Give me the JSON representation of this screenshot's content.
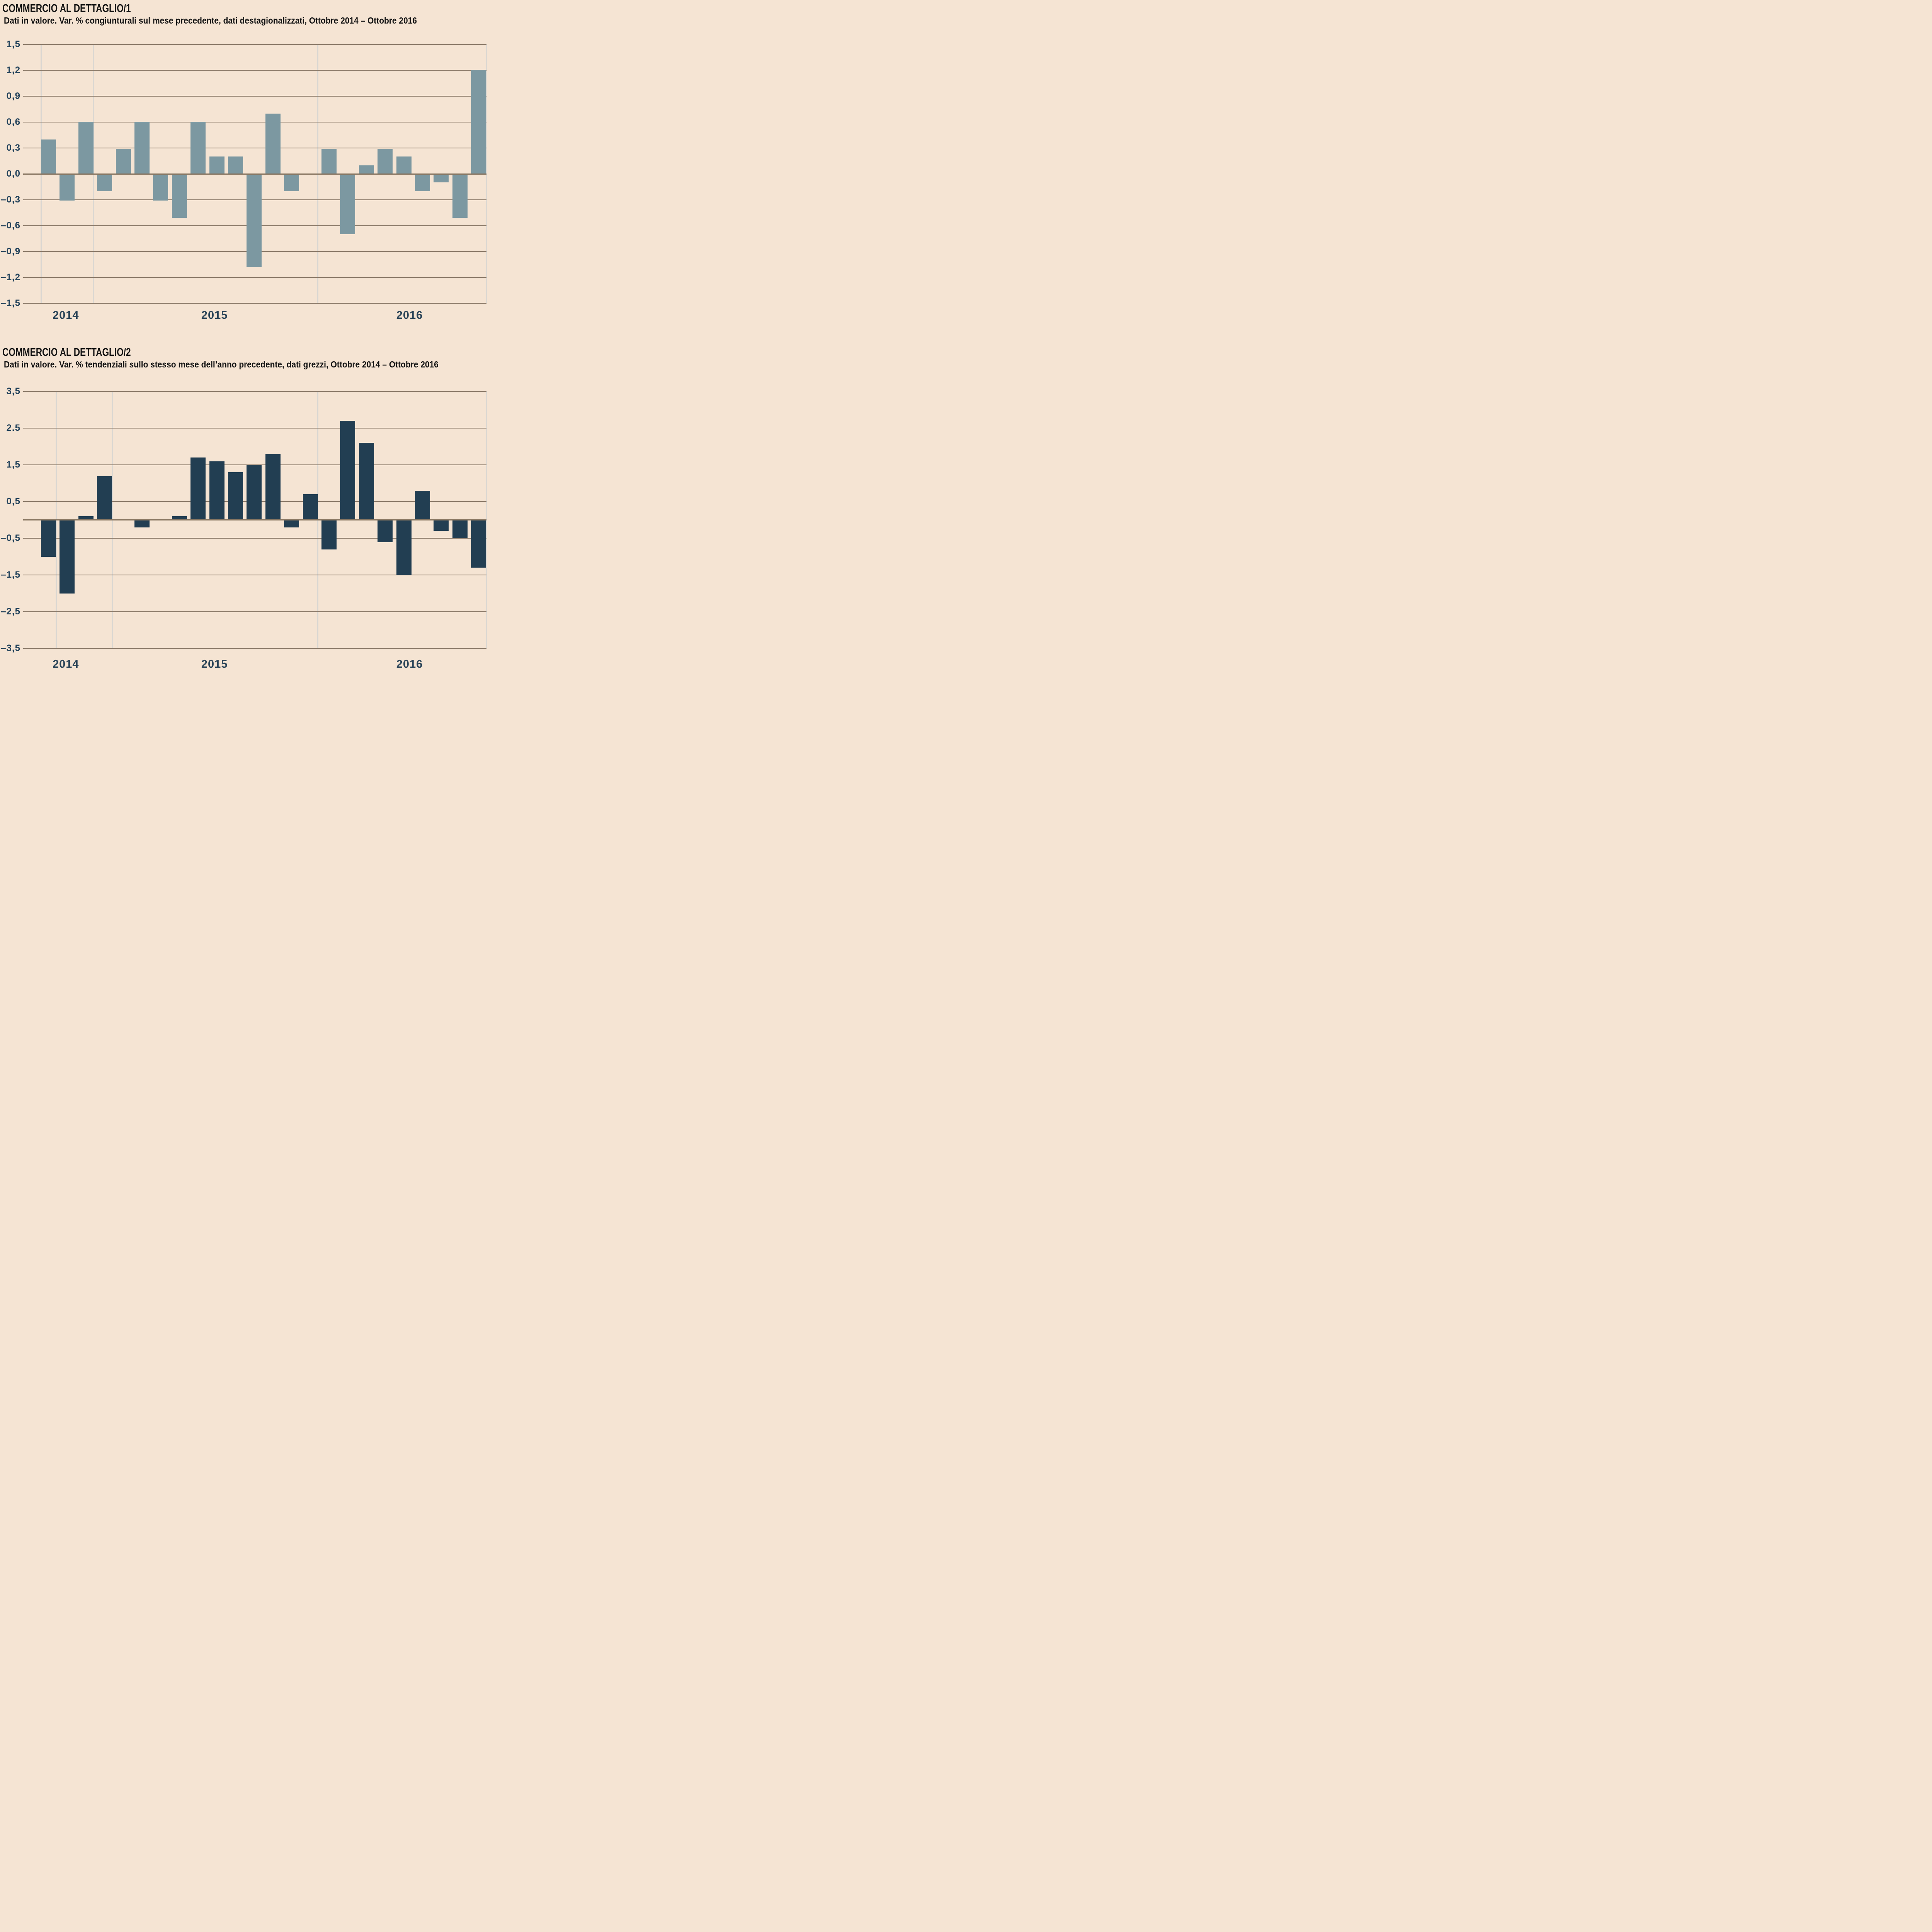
{
  "page": {
    "background": "#f5e4d3"
  },
  "colors": {
    "background": "#f5e4d3",
    "bar_chart1": "#7c98a1",
    "bar_chart2": "#223e52",
    "gridline": "#8d7c6b",
    "zero_axis": "#887661",
    "year_separator": "#dbd7d1",
    "axis_text": "#21415a",
    "title_text": "#131313"
  },
  "chart_data": [
    {
      "type": "bar",
      "title": "COMMERCIO AL DETTAGLIO/1",
      "subtitle": "Dati in valore. Var. % congiunturali sul mese precedente, dati destagionalizzati, Ottobre 2014 – Ottobre 2016",
      "bar_color": "#7c98a1",
      "columns": 24,
      "values": [
        0.4,
        -0.31,
        0.6,
        -0.2,
        0.29,
        0.6,
        -0.31,
        -0.51,
        0.6,
        0.2,
        0.2,
        -1.08,
        0.7,
        -0.2,
        0,
        0.29,
        -0.7,
        0.1,
        0.29,
        0.2,
        -0.2,
        -0.1,
        -0.51,
        1.2
      ],
      "ylim": [
        -1.5,
        1.5
      ],
      "y_tick_labels": [
        "1,5",
        "1,2",
        "0,9",
        "0,6",
        "0,3",
        "0,0",
        "–0,3",
        "–0,6",
        "–0,9",
        "–1,2",
        "–1,5"
      ],
      "y_tick_values": [
        1.5,
        1.2,
        0.9,
        0.6,
        0.3,
        0,
        -0.3,
        -0.6,
        -0.9,
        -1.2,
        -1.5
      ],
      "baseline_value": 0,
      "grid": "horizontal",
      "legend": "none",
      "x_year_labels": [
        {
          "label": "2014",
          "x_pct": 9.2
        },
        {
          "label": "2015",
          "x_pct": 41.3
        },
        {
          "label": "2016",
          "x_pct": 83.4
        }
      ],
      "year_separators_after_column": [
        0,
        3,
        15,
        24
      ]
    },
    {
      "type": "bar",
      "title": "COMMERCIO AL DETTAGLIO/2",
      "subtitle": "Dati in valore. Var. % tendenziali sullo stesso mese dell’anno precedente, dati grezzi, Ottobre 2014 – Ottobre 2016",
      "bar_color": "#223e52",
      "columns": 24,
      "values": [
        -1,
        -2,
        0.1,
        1.2,
        0,
        -0.2,
        0,
        0.1,
        1.7,
        1.6,
        1.3,
        1.5,
        1.8,
        -0.2,
        0.7,
        -0.8,
        2.7,
        2.1,
        -0.6,
        -1.5,
        0.8,
        -0.3,
        -0.5,
        -1.3
      ],
      "ylim": [
        -3.5,
        3.5
      ],
      "y_tick_labels": [
        "3,5",
        "2.5",
        "1,5",
        "0,5",
        "–0,5",
        "–1,5",
        "–2,5",
        "–3,5"
      ],
      "y_tick_values": [
        3.5,
        2.5,
        1.5,
        0.5,
        -0.5,
        -1.5,
        -2.5,
        -3.5
      ],
      "baseline_value": 0,
      "grid": "horizontal",
      "legend": "none",
      "x_year_labels": [
        {
          "label": "2014",
          "x_pct": 9.2
        },
        {
          "label": "2015",
          "x_pct": 41.3
        },
        {
          "label": "2016",
          "x_pct": 83.4
        }
      ],
      "year_separators_after_column": [
        1,
        4,
        15,
        24
      ]
    }
  ]
}
